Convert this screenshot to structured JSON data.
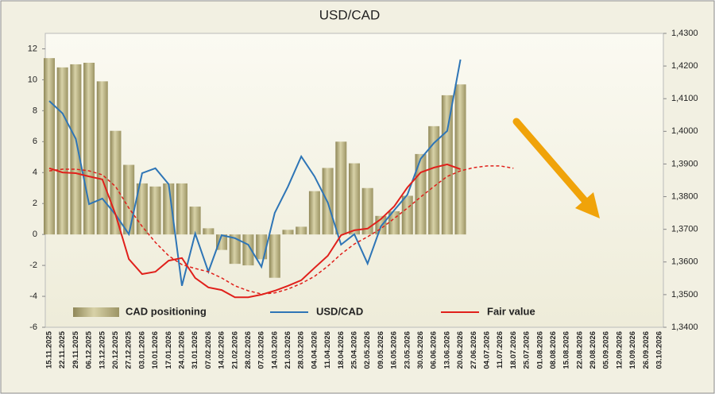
{
  "chart_data": {
    "type": "combo",
    "title": "USD/CAD",
    "categories": [
      "15.11.2025",
      "22.11.2025",
      "29.11.2025",
      "06.12.2025",
      "13.12.2025",
      "20.12.2025",
      "27.12.2025",
      "03.01.2026",
      "10.01.2026",
      "17.01.2026",
      "24.01.2026",
      "31.01.2026",
      "07.02.2026",
      "14.02.2026",
      "21.02.2026",
      "28.02.2026",
      "07.03.2026",
      "14.03.2026",
      "21.03.2026",
      "28.03.2026",
      "04.04.2026",
      "11.04.2026",
      "18.04.2026",
      "25.04.2026",
      "02.05.2026",
      "09.05.2026",
      "16.05.2026",
      "23.05.2026",
      "30.05.2026",
      "06.06.2026",
      "13.06.2026",
      "20.06.2026",
      "27.06.2026",
      "04.07.2026",
      "11.07.2026",
      "18.07.2026",
      "25.07.2026",
      "01.08.2026",
      "08.08.2026",
      "15.08.2026",
      "22.08.2026",
      "29.08.2026",
      "05.09.2026",
      "12.09.2026",
      "19.09.2026",
      "26.09.2026",
      "03.10.2026"
    ],
    "ylim": [
      -6,
      13
    ],
    "yticks": [
      -6,
      -4,
      -2,
      0,
      2,
      4,
      6,
      8,
      10,
      12
    ],
    "y2lim": [
      1.34,
      1.43
    ],
    "y2ticks": [
      {
        "value": 1.34,
        "label": "1,3400"
      },
      {
        "value": 1.35,
        "label": "1,3500"
      },
      {
        "value": 1.36,
        "label": "1,3600"
      },
      {
        "value": 1.37,
        "label": "1,3700"
      },
      {
        "value": 1.38,
        "label": "1,3800"
      },
      {
        "value": 1.39,
        "label": "1,3900"
      },
      {
        "value": 1.4,
        "label": "1,4000"
      },
      {
        "value": 1.41,
        "label": "1,4100"
      },
      {
        "value": 1.42,
        "label": "1,4200"
      },
      {
        "value": 1.43,
        "label": "1,4300"
      }
    ],
    "series": [
      {
        "name": "CAD positioning",
        "kind": "bar",
        "color": "#b3ab7a",
        "values": [
          11.4,
          10.8,
          11.0,
          11.1,
          9.9,
          6.7,
          4.5,
          3.3,
          3.1,
          3.3,
          3.3,
          1.8,
          0.4,
          -1.0,
          -1.9,
          -2.0,
          -1.6,
          -2.8,
          0.3,
          0.5,
          2.8,
          4.3,
          6.0,
          4.6,
          3.0,
          1.2,
          1.5,
          2.5,
          5.2,
          7.0,
          9.0,
          9.7,
          null,
          null,
          null,
          null,
          null,
          null,
          null,
          null,
          null,
          null,
          null,
          null,
          null,
          null,
          null
        ]
      },
      {
        "name": "USD/CAD",
        "kind": "line",
        "axis": "y2",
        "color": "#2e75b6",
        "values": [
          1.4093,
          1.4055,
          1.3977,
          1.3777,
          1.3794,
          1.3745,
          1.3685,
          1.3872,
          1.3887,
          1.3838,
          1.3527,
          1.3687,
          1.357,
          1.3682,
          1.3673,
          1.3653,
          1.3585,
          1.375,
          1.3831,
          1.3923,
          1.3862,
          1.3782,
          1.3653,
          1.3685,
          1.3595,
          1.3709,
          1.3758,
          1.3806,
          1.3916,
          1.3964,
          1.4001,
          1.422,
          null,
          null,
          null,
          null,
          null,
          null,
          null,
          null,
          null,
          null,
          null,
          null,
          null,
          null,
          null
        ]
      },
      {
        "name": "Fair value",
        "kind": "line",
        "axis": "y2",
        "color": "#e0201b",
        "values": [
          1.3887,
          1.3874,
          1.3872,
          1.3862,
          1.3853,
          1.3745,
          1.3609,
          1.3563,
          1.357,
          1.3604,
          1.3612,
          1.3551,
          1.3522,
          1.3514,
          1.3492,
          1.3492,
          1.35,
          1.3512,
          1.3527,
          1.3544,
          1.3582,
          1.3619,
          1.3682,
          1.3697,
          1.3702,
          1.3731,
          1.377,
          1.3828,
          1.3874,
          1.3889,
          1.3899,
          1.3884,
          null,
          null,
          null,
          null,
          null,
          null,
          null,
          null,
          null,
          null,
          null,
          null,
          null,
          null,
          null
        ]
      },
      {
        "kind": "line",
        "axis": "y2",
        "dashed": true,
        "color": "#e0201b",
        "values": [
          1.3879,
          1.3884,
          1.3884,
          1.3879,
          1.3867,
          1.3831,
          1.3765,
          1.3709,
          1.366,
          1.3619,
          1.3592,
          1.358,
          1.357,
          1.3551,
          1.3527,
          1.3512,
          1.3502,
          1.3505,
          1.3517,
          1.3534,
          1.3556,
          1.3587,
          1.3624,
          1.3655,
          1.3677,
          1.3702,
          1.3733,
          1.3765,
          1.3799,
          1.3831,
          1.3862,
          1.3879,
          1.3889,
          1.3894,
          1.3894,
          1.3887,
          null,
          null,
          null,
          null,
          null,
          null,
          null,
          null,
          null,
          null,
          null
        ]
      }
    ]
  }
}
